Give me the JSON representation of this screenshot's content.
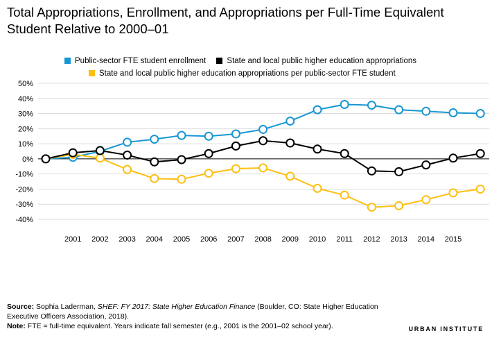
{
  "title": "Total Appropriations, Enrollment, and Appropriations per Full-Time Equivalent Student Relative to 2000–01",
  "chart_data": {
    "type": "line",
    "x": [
      "2000",
      "2001",
      "2002",
      "2003",
      "2004",
      "2005",
      "2006",
      "2007",
      "2008",
      "2009",
      "2010",
      "2011",
      "2012",
      "2013",
      "2014",
      "2015",
      "2016"
    ],
    "x_tick_labels": [
      "",
      "2001",
      "2002",
      "2003",
      "2004",
      "2005",
      "2006",
      "2007",
      "2008",
      "2009",
      "2010",
      "2011",
      "2012",
      "2013",
      "2014",
      "2015",
      ""
    ],
    "ylim": [
      -40,
      50
    ],
    "y_ticks": [
      "50%",
      "40%",
      "30%",
      "20%",
      "10%",
      "0%",
      "-10%",
      "-20%",
      "-30%",
      "-40%"
    ],
    "grid": true,
    "series": [
      {
        "name": "Public-sector FTE student enrollment",
        "color": "#1696d2",
        "values": [
          0,
          1,
          5,
          11,
          13,
          15.5,
          15,
          16.5,
          19.5,
          25,
          32.5,
          36,
          35.5,
          32.5,
          31.5,
          30.5,
          30
        ]
      },
      {
        "name": "State and local public higher education appropriations",
        "color": "#000000",
        "values": [
          0,
          4,
          5.5,
          2.5,
          -2,
          -0.5,
          3.5,
          8.5,
          12,
          10.5,
          6.5,
          3.5,
          -8,
          -8.5,
          -4,
          0.5,
          3.5
        ]
      },
      {
        "name": "State and local public higher education appropriations per public-sector FTE student",
        "color": "#fdbf11",
        "values": [
          0,
          3,
          0.5,
          -7,
          -13,
          -13.5,
          -9.5,
          -6.5,
          -6,
          -11.5,
          -19.5,
          -24,
          -32,
          -31,
          -27,
          -22.5,
          -20
        ]
      }
    ]
  },
  "source_label": "Source:",
  "source_text": "Sophia Laderman,",
  "source_italic": "SHEF: FY 2017: State Higher Education Finance",
  "source_rest": "(Boulder, CO: State Higher Education Executive Officers Association, 2018).",
  "note_label": "Note:",
  "note_text": "FTE = full-time equivalent. Years indicate fall semester (e.g., 2001 is the 2001–02 school year).",
  "brand": "URBAN INSTITUTE"
}
